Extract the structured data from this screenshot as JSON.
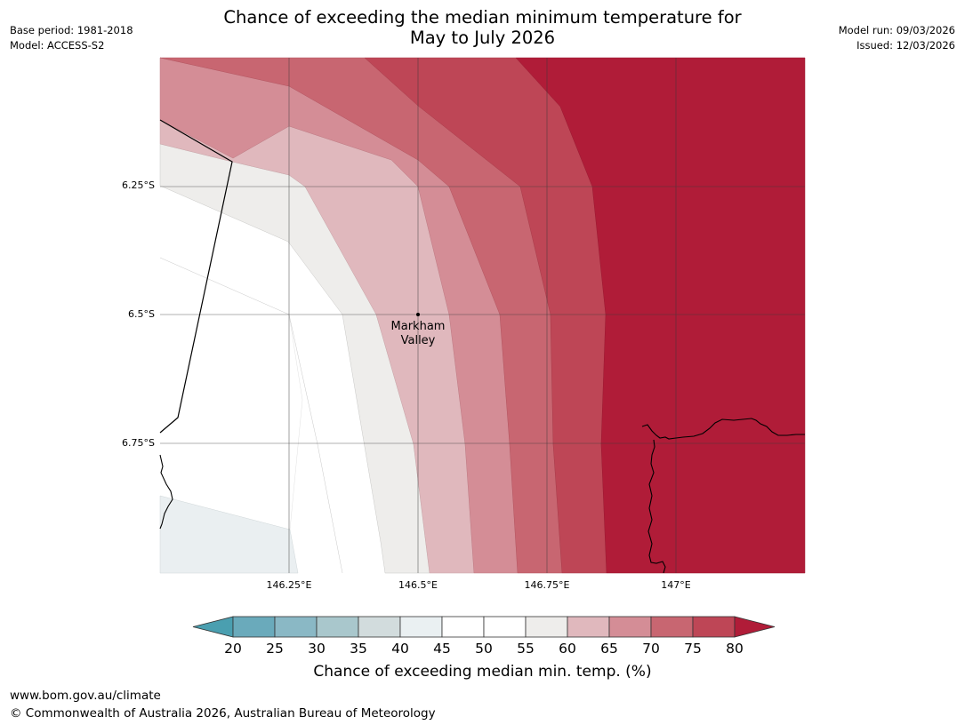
{
  "header": {
    "title_line1": "Chance of exceeding the median minimum temperature for",
    "title_line2": "May to July 2026",
    "base_period": "Base period: 1981-2018",
    "model": "Model: ACCESS-S2",
    "model_run": "Model run: 09/03/2026",
    "issued": "Issued: 12/03/2026"
  },
  "map": {
    "lat_labels": [
      "6.25°S",
      "6.5°S",
      "6.75°S"
    ],
    "lon_labels": [
      "146.25°E",
      "146.5°E",
      "146.75°E",
      "147°E"
    ],
    "place": {
      "name_line1": "Markham",
      "name_line2": "Valley"
    }
  },
  "colorbar": {
    "ticks": [
      "20",
      "25",
      "30",
      "35",
      "40",
      "45",
      "50",
      "55",
      "60",
      "65",
      "70",
      "75",
      "80"
    ],
    "colors": [
      "#4a9fb0",
      "#6aaabb",
      "#8ab8c5",
      "#a9c7cc",
      "#d2dcdd",
      "#eaf0f2",
      "#ffffff",
      "#ffffff",
      "#eeedeb",
      "#e0b8bd",
      "#d48d96",
      "#c86671",
      "#be4656",
      "#b01c38"
    ],
    "label": "Chance of exceeding median min. temp. (%)"
  },
  "footer": {
    "url": "www.bom.gov.au/climate",
    "copyright": "© Commonwealth of Australia 2026, Australian Bureau of Meteorology"
  }
}
